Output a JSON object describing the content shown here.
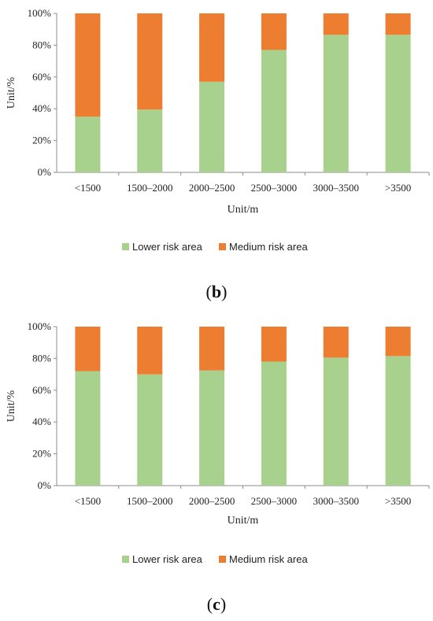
{
  "colors": {
    "lower": "#a9d18e",
    "medium": "#ed7d31",
    "axis": "#8c8c8c"
  },
  "chart_data": [
    {
      "type": "bar",
      "stacked": true,
      "percent": true,
      "panel_label": "b",
      "categories": [
        "<1500",
        "1500–2000",
        "2000–2500",
        "2500–3000",
        "3000–3500",
        ">3500"
      ],
      "series": [
        {
          "name": "Lower risk area",
          "values": [
            35,
            39.5,
            57,
            77,
            86.5,
            86.5
          ]
        },
        {
          "name": "Medium risk area",
          "values": [
            65,
            60.5,
            43,
            23,
            13.5,
            13.5
          ]
        }
      ],
      "xlabel": "Unit/m",
      "ylabel": "Unit/%",
      "ylim": [
        0,
        100
      ],
      "yticks": [
        "0%",
        "20%",
        "40%",
        "60%",
        "80%",
        "100%"
      ],
      "legend": "bottom"
    },
    {
      "type": "bar",
      "stacked": true,
      "percent": true,
      "panel_label": "c",
      "categories": [
        "<1500",
        "1500–2000",
        "2000–2500",
        "2500–3000",
        "3000–3500",
        ">3500"
      ],
      "series": [
        {
          "name": "Lower risk area",
          "values": [
            72,
            70,
            72.5,
            78,
            80.5,
            81.5
          ]
        },
        {
          "name": "Medium risk area",
          "values": [
            28,
            30,
            27.5,
            22,
            19.5,
            18.5
          ]
        }
      ],
      "xlabel": "Unit/m",
      "ylabel": "Unit/%",
      "ylim": [
        0,
        100
      ],
      "yticks": [
        "0%",
        "20%",
        "40%",
        "60%",
        "80%",
        "100%"
      ],
      "legend": "bottom"
    }
  ]
}
